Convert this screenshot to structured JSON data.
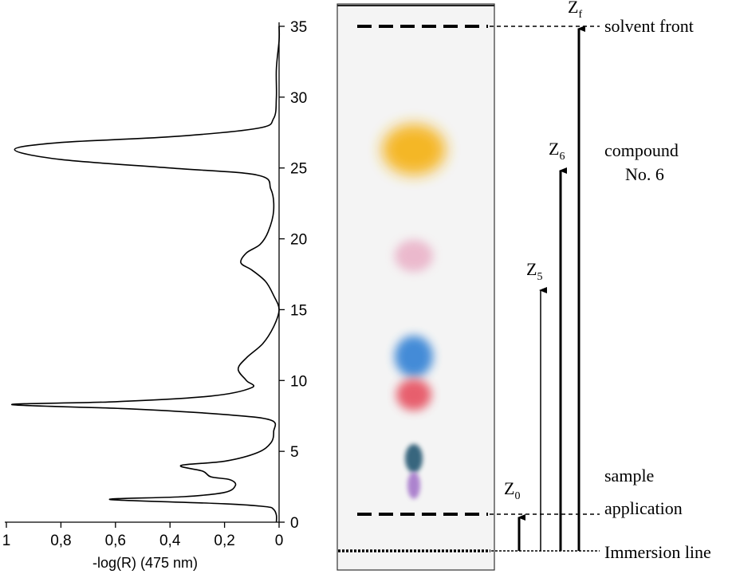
{
  "chart_data": {
    "type": "line",
    "xlabel": "-log(R) (475 nm)",
    "xlim": [
      1,
      0
    ],
    "ylim": [
      0,
      35
    ],
    "x_ticks": [
      "1",
      "0,8",
      "0,6",
      "0,4",
      "0,2",
      "0"
    ],
    "x_tick_values": [
      1,
      0.8,
      0.6,
      0.4,
      0.2,
      0
    ],
    "y_ticks": [
      "0",
      "5",
      "10",
      "15",
      "20",
      "25",
      "30",
      "35"
    ],
    "y_tick_values": [
      0,
      5,
      10,
      15,
      20,
      25,
      30,
      35
    ],
    "grid": false,
    "series": [
      {
        "points": [
          [
            0.01,
            0
          ],
          [
            0.01,
            0.5
          ],
          [
            0.02,
            0.9
          ],
          [
            0.05,
            1.1
          ],
          [
            0.2,
            1.3
          ],
          [
            0.62,
            1.6
          ],
          [
            0.35,
            1.8
          ],
          [
            0.2,
            2.1
          ],
          [
            0.16,
            2.6
          ],
          [
            0.18,
            3.0
          ],
          [
            0.25,
            3.2
          ],
          [
            0.28,
            3.6
          ],
          [
            0.36,
            4.0
          ],
          [
            0.2,
            4.3
          ],
          [
            0.08,
            4.9
          ],
          [
            0.03,
            5.6
          ],
          [
            0.02,
            6.4
          ],
          [
            0.03,
            7.2
          ],
          [
            0.2,
            7.6
          ],
          [
            0.55,
            8.0
          ],
          [
            0.98,
            8.3
          ],
          [
            0.6,
            8.5
          ],
          [
            0.25,
            8.9
          ],
          [
            0.1,
            9.5
          ],
          [
            0.12,
            10.0
          ],
          [
            0.15,
            10.8
          ],
          [
            0.12,
            11.6
          ],
          [
            0.06,
            12.6
          ],
          [
            0.02,
            13.8
          ],
          [
            0.0,
            15.0
          ],
          [
            0.02,
            16.0
          ],
          [
            0.05,
            17.0
          ],
          [
            0.1,
            17.8
          ],
          [
            0.14,
            18.3
          ],
          [
            0.12,
            19.0
          ],
          [
            0.07,
            19.6
          ],
          [
            0.04,
            20.5
          ],
          [
            0.02,
            22.0
          ],
          [
            0.03,
            23.5
          ],
          [
            0.08,
            24.5
          ],
          [
            0.4,
            25.0
          ],
          [
            0.8,
            25.6
          ],
          [
            0.97,
            26.3
          ],
          [
            0.8,
            26.8
          ],
          [
            0.4,
            27.2
          ],
          [
            0.08,
            27.8
          ],
          [
            0.02,
            28.5
          ],
          [
            0.01,
            30
          ],
          [
            0.01,
            32
          ],
          [
            0.0,
            34
          ],
          [
            0.0,
            35
          ]
        ]
      }
    ]
  },
  "plate": {
    "spots": [
      {
        "color": "#f5b41e",
        "z": 26.3
      },
      {
        "color": "#e8a6c0",
        "z": 18.8
      },
      {
        "color": "#3a86d6",
        "z": 11.7
      },
      {
        "color": "#e6505e",
        "z": 9.0
      },
      {
        "color": "#2f5f78",
        "z": 4.5
      },
      {
        "color": "#a070c8",
        "z": 2.6
      }
    ]
  },
  "labels": {
    "solvent_front": "solvent front",
    "compound_line1": "compound",
    "compound_line2": "No. 6",
    "sample_line1": "sample",
    "sample_line2": "application",
    "immersion": "Immersion line",
    "zf_main": "Z",
    "zf_sub": "f",
    "z6_main": "Z",
    "z6_sub": "6",
    "z5_main": "Z",
    "z5_sub": "5",
    "z0_main": "Z",
    "z0_sub": "0"
  }
}
